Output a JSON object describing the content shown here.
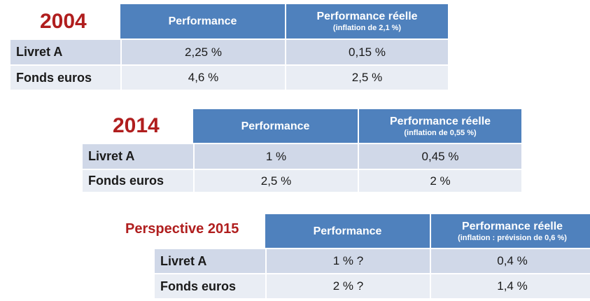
{
  "tables": [
    {
      "title": "2004",
      "col1": "Performance",
      "col2": "Performance réelle",
      "col2_note": "(inflation de 2,1 %)",
      "rows": [
        {
          "label": "Livret A",
          "perf": "2,25 %",
          "real": "0,15 %"
        },
        {
          "label": "Fonds euros",
          "perf": "4,6 %",
          "real": "2,5 %"
        }
      ]
    },
    {
      "title": "2014",
      "col1": "Performance",
      "col2": "Performance réelle",
      "col2_note": "(inflation de 0,55 %)",
      "rows": [
        {
          "label": "Livret A",
          "perf": "1 %",
          "real": "0,45 %"
        },
        {
          "label": "Fonds euros",
          "perf": "2,5 %",
          "real": "2 %"
        }
      ]
    },
    {
      "title": "Perspective 2015",
      "col1": "Performance",
      "col2": "Performance réelle",
      "col2_note": "(inflation : prévision de 0,6 %)",
      "rows": [
        {
          "label": "Livret A",
          "perf": "1 % ?",
          "real": "0,4 %"
        },
        {
          "label": "Fonds euros",
          "perf": "2 % ?",
          "real": "1,4 %"
        }
      ]
    }
  ],
  "colors": {
    "header": "#4f81bd",
    "row_dark": "#d0d8e8",
    "row_light": "#e9edf4",
    "title": "#b01e1e"
  }
}
